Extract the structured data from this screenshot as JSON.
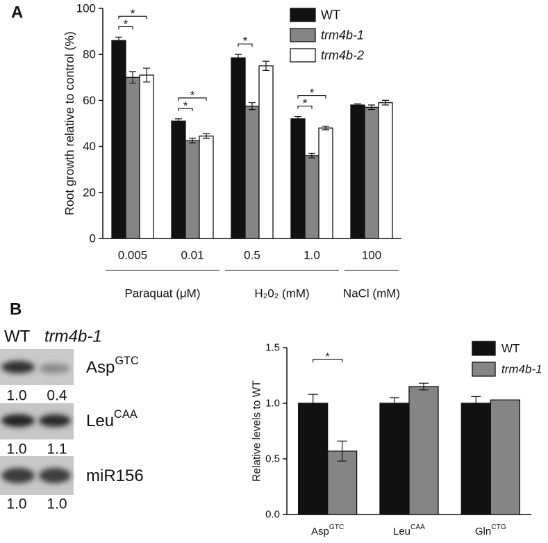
{
  "panel_labels": [
    "A",
    "B"
  ],
  "chart_data": [
    {
      "type": "bar",
      "ylabel": "Root growth relative to control (%)",
      "categories": [
        "0.005",
        "0.01",
        "0.5",
        "1.0",
        "100"
      ],
      "category_groups": [
        "Paraquat (μM)",
        "Paraquat (μM)",
        "H₂0₂ (mM)",
        "H₂0₂ (mM)",
        "NaCl (mM)"
      ],
      "series": [
        {
          "name": "WT",
          "color": "#111111",
          "values": [
            86,
            51,
            78.5,
            52,
            58
          ],
          "errors": [
            1.5,
            1,
            1.5,
            1,
            0.5
          ]
        },
        {
          "name": "trm4b-1",
          "color": "#858585",
          "font_style": "italic",
          "values": [
            70,
            42.5,
            57.5,
            36,
            57
          ],
          "errors": [
            2.5,
            1,
            1.5,
            1,
            1
          ]
        },
        {
          "name": "trm4b-2",
          "color": "#ffffff",
          "font_style": "italic",
          "values": [
            71,
            44.5,
            75,
            48,
            59
          ],
          "errors": [
            3,
            1,
            2,
            0.8,
            1
          ]
        }
      ],
      "significance": [
        {
          "category": 0,
          "series": [
            0,
            1
          ],
          "label": "*"
        },
        {
          "category": 0,
          "series": [
            0,
            2
          ],
          "label": "*"
        },
        {
          "category": 1,
          "series": [
            0,
            1
          ],
          "label": "*"
        },
        {
          "category": 1,
          "series": [
            0,
            2
          ],
          "label": "*"
        },
        {
          "category": 2,
          "series": [
            0,
            1
          ],
          "label": "*"
        },
        {
          "category": 3,
          "series": [
            0,
            1
          ],
          "label": "*"
        },
        {
          "category": 3,
          "series": [
            0,
            2
          ],
          "label": "*"
        }
      ],
      "ylim": [
        0,
        100
      ],
      "yticks": [
        0,
        20,
        40,
        60,
        80,
        100
      ]
    },
    {
      "type": "bar",
      "ylabel": "Relative levels to WT",
      "categories": [
        "Asp",
        "Leu",
        "Gln"
      ],
      "category_superscripts": [
        "GTC",
        "CAA",
        "CTG"
      ],
      "series": [
        {
          "name": "WT",
          "color": "#111111",
          "values": [
            1.0,
            1.0,
            1.0
          ],
          "errors": [
            0.08,
            0.05,
            0.06
          ]
        },
        {
          "name": "trm4b-1",
          "color": "#858585",
          "font_style": "italic",
          "values": [
            0.57,
            1.15,
            1.03
          ],
          "errors": [
            0.09,
            0.03,
            null
          ]
        }
      ],
      "significance": [
        {
          "category": 0,
          "series": [
            0,
            1
          ],
          "label": "*"
        }
      ],
      "ylim": [
        0,
        1.5
      ],
      "yticks": [
        {
          "value": 0,
          "label": "0.0"
        },
        {
          "value": 0.5,
          "label": "0.5"
        },
        {
          "value": 1.0,
          "label": "1.0"
        },
        {
          "value": 1.5,
          "label": "1.5"
        }
      ]
    }
  ],
  "blot": {
    "lanes": [
      "WT",
      "trm4b-1"
    ],
    "rows": [
      {
        "name": "Asp",
        "superscript": "GTC",
        "quantification": [
          "1.0",
          "0.4"
        ]
      },
      {
        "name": "Leu",
        "superscript": "CAA",
        "quantification": [
          "1.0",
          "1.1"
        ]
      },
      {
        "name": "miR156",
        "quantification": [
          "1.0",
          "1.0"
        ]
      }
    ]
  }
}
